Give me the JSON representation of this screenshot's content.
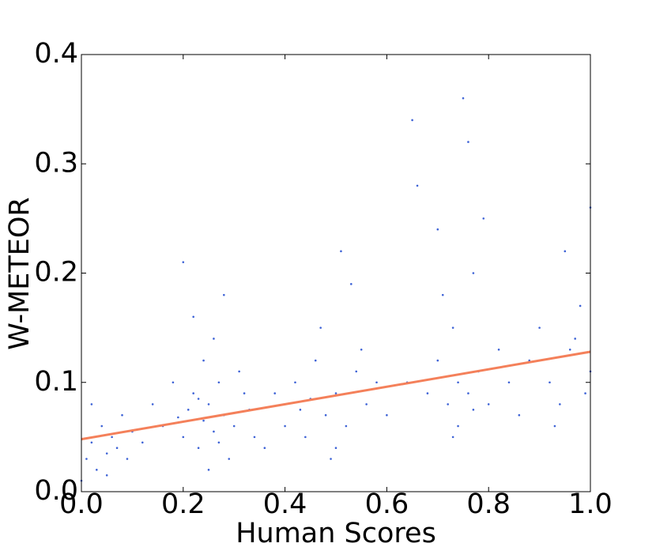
{
  "chart_data": {
    "type": "scatter",
    "xlabel": "Human Scores",
    "ylabel": "W-METEOR",
    "xlim": [
      0,
      1
    ],
    "ylim": [
      0,
      0.4
    ],
    "xticks": [
      {
        "value": 0,
        "label": "0.0"
      },
      0.2,
      0.4,
      0.6,
      0.8,
      {
        "value": 1,
        "label": "1.0"
      }
    ],
    "yticks": [
      {
        "value": 0,
        "label": "0.0"
      },
      0.1,
      0.2,
      0.3,
      0.4
    ],
    "series": [
      {
        "type": "scatter",
        "color": "#3d62d6",
        "x": [
          0.01,
          0.02,
          0.03,
          0.04,
          0.05,
          0.06,
          0.07,
          0.08,
          0.09,
          0.0,
          0.02,
          0.05,
          0.1,
          0.12,
          0.14,
          0.16,
          0.18,
          0.2,
          0.21,
          0.22,
          0.23,
          0.24,
          0.25,
          0.26,
          0.27,
          0.28,
          0.29,
          0.3,
          0.24,
          0.26,
          0.22,
          0.28,
          0.25,
          0.32,
          0.34,
          0.2,
          0.31,
          0.23,
          0.27,
          0.19,
          0.33,
          0.36,
          0.4,
          0.42,
          0.44,
          0.46,
          0.48,
          0.5,
          0.52,
          0.54,
          0.5,
          0.47,
          0.53,
          0.51,
          0.49,
          0.56,
          0.58,
          0.45,
          0.55,
          0.43,
          0.6,
          0.38,
          0.64,
          0.66,
          0.68,
          0.7,
          0.72,
          0.73,
          0.74,
          0.75,
          0.76,
          0.77,
          0.78,
          0.79,
          0.8,
          0.82,
          0.74,
          0.71,
          0.76,
          0.65,
          0.7,
          0.73,
          0.77,
          0.84,
          0.86,
          0.88,
          0.9,
          0.92,
          0.94,
          0.96,
          0.98,
          1.0,
          0.99,
          0.95,
          0.93,
          0.97,
          1.0
        ],
        "values": [
          0.03,
          0.045,
          0.02,
          0.06,
          0.035,
          0.05,
          0.04,
          0.07,
          0.03,
          0.01,
          0.08,
          0.015,
          0.055,
          0.045,
          0.08,
          0.06,
          0.1,
          0.05,
          0.075,
          0.09,
          0.04,
          0.065,
          0.08,
          0.055,
          0.1,
          0.07,
          0.03,
          0.06,
          0.12,
          0.14,
          0.16,
          0.18,
          0.02,
          0.09,
          0.05,
          0.21,
          0.11,
          0.085,
          0.045,
          0.068,
          0.075,
          0.04,
          0.06,
          0.1,
          0.05,
          0.12,
          0.07,
          0.09,
          0.06,
          0.11,
          0.04,
          0.15,
          0.19,
          0.22,
          0.03,
          0.08,
          0.1,
          0.085,
          0.13,
          0.075,
          0.07,
          0.09,
          0.1,
          0.28,
          0.09,
          0.12,
          0.08,
          0.15,
          0.1,
          0.36,
          0.09,
          0.2,
          0.11,
          0.25,
          0.08,
          0.13,
          0.06,
          0.18,
          0.32,
          0.34,
          0.24,
          0.05,
          0.075,
          0.1,
          0.07,
          0.12,
          0.15,
          0.1,
          0.08,
          0.13,
          0.17,
          0.26,
          0.09,
          0.22,
          0.06,
          0.14,
          0.11
        ]
      },
      {
        "type": "line",
        "color": "#f4805a",
        "x": [
          0,
          1
        ],
        "values": [
          0.048,
          0.128
        ]
      }
    ]
  }
}
